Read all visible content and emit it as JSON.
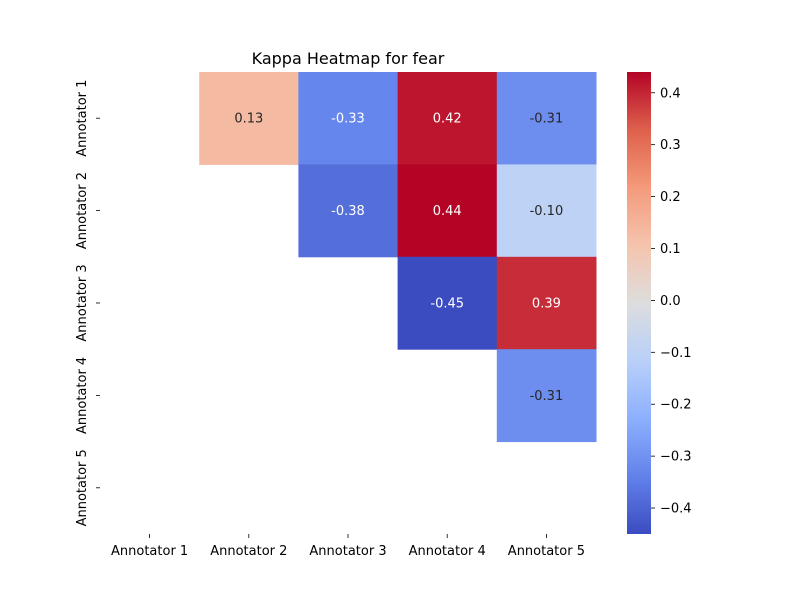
{
  "chart_data": {
    "type": "heatmap",
    "title": "Kappa Heatmap for fear",
    "x_categories": [
      "Annotator 1",
      "Annotator 2",
      "Annotator 3",
      "Annotator 4",
      "Annotator 5"
    ],
    "y_categories": [
      "Annotator 1",
      "Annotator 2",
      "Annotator 3",
      "Annotator 4",
      "Annotator 5"
    ],
    "matrix": [
      [
        null,
        0.13,
        -0.33,
        0.42,
        -0.31
      ],
      [
        null,
        null,
        -0.38,
        0.44,
        -0.1
      ],
      [
        null,
        null,
        null,
        -0.45,
        0.39
      ],
      [
        null,
        null,
        null,
        null,
        -0.31
      ],
      [
        null,
        null,
        null,
        null,
        null
      ]
    ],
    "colormap": "coolwarm",
    "vmin": -0.45,
    "vmax": 0.44,
    "colorbar_ticks": [
      0.4,
      0.3,
      0.2,
      0.1,
      0.0,
      -0.1,
      -0.2,
      -0.3,
      -0.4
    ],
    "colorbar_tick_labels": [
      "0.4",
      "0.3",
      "0.2",
      "0.1",
      "0.0",
      "−0.1",
      "−0.2",
      "−0.3",
      "−0.4"
    ]
  }
}
